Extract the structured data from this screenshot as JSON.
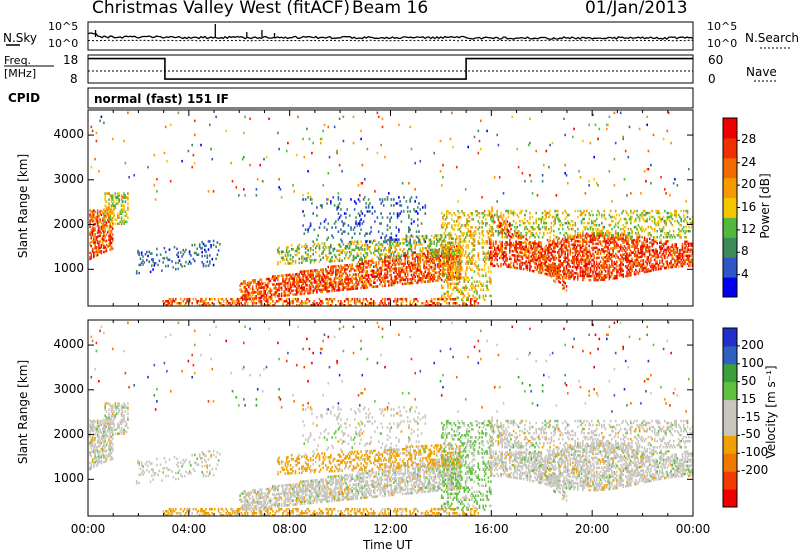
{
  "header": {
    "station": "Christmas Valley West (fitACF)",
    "beam": "Beam 16",
    "date": "01/Jan/2013"
  },
  "colors": {
    "power_scale": [
      "#0000ee",
      "#2f55c8",
      "#3d8a5a",
      "#55b83c",
      "#f5c600",
      "#f59a00",
      "#f06a00",
      "#f03000",
      "#ee0000"
    ],
    "velocity_scale": [
      "#ee0000",
      "#f03c00",
      "#f07800",
      "#f0a000",
      "#c8c6be",
      "#c8c6be",
      "#60c040",
      "#3aa03a",
      "#3060c0",
      "#2030c8"
    ]
  },
  "chart_data": [
    {
      "type": "line",
      "name": "noise",
      "left_label": "N.Sky",
      "right_label": "N.Search",
      "left_ticks": [
        "10^5",
        "10^0"
      ],
      "right_ticks": [
        "10^5",
        "10^0"
      ]
    },
    {
      "type": "line",
      "name": "frequency",
      "left_label_1": "Freq.",
      "left_label_2": "[MHz]",
      "right_label": "Nave",
      "left_ticks": [
        "18",
        "8"
      ],
      "right_ticks": [
        "60",
        "0"
      ],
      "ylim": [
        8,
        18
      ],
      "x": [
        0,
        3.05,
        3.05,
        15.0,
        15.0,
        24
      ],
      "y": [
        16.7,
        16.7,
        9.4,
        9.4,
        16.7,
        16.7
      ],
      "nave_level": 12.3
    },
    {
      "type": "text",
      "name": "cpid",
      "label": "CPID",
      "value": "normal (fast) 151 IF"
    },
    {
      "type": "heatmap",
      "name": "power",
      "ylabel": "Slant Range [km]",
      "ylim": [
        180,
        4560
      ],
      "yticks": [
        "1000",
        "2000",
        "3000",
        "4000"
      ],
      "yticks_values": [
        1000,
        2000,
        3000,
        4000
      ],
      "xlim": [
        0,
        24
      ],
      "colorbar_label": "Power [dB]",
      "colorbar_ticks": [
        "28",
        "24",
        "20",
        "16",
        "12",
        "8",
        "4"
      ],
      "colorbar_values": [
        28,
        24,
        20,
        16,
        12,
        8,
        4
      ],
      "colorbar_range": [
        0,
        32
      ]
    },
    {
      "type": "heatmap",
      "name": "velocity",
      "ylabel": "Slant Range [km]",
      "xlabel": "Time UT",
      "ylim": [
        180,
        4560
      ],
      "yticks": [
        "1000",
        "2000",
        "3000",
        "4000"
      ],
      "yticks_values": [
        1000,
        2000,
        3000,
        4000
      ],
      "xlim": [
        0,
        24
      ],
      "xticks": [
        "00:00",
        "04:00",
        "08:00",
        "12:00",
        "16:00",
        "20:00",
        "00:00"
      ],
      "xticks_values": [
        0,
        4,
        8,
        12,
        16,
        20,
        24
      ],
      "colorbar_label": "Velocity [m s⁻¹]",
      "colorbar_ticks": [
        "200",
        "100",
        "50",
        "15",
        "-15",
        "-50",
        "-100",
        "-200"
      ]
    }
  ]
}
